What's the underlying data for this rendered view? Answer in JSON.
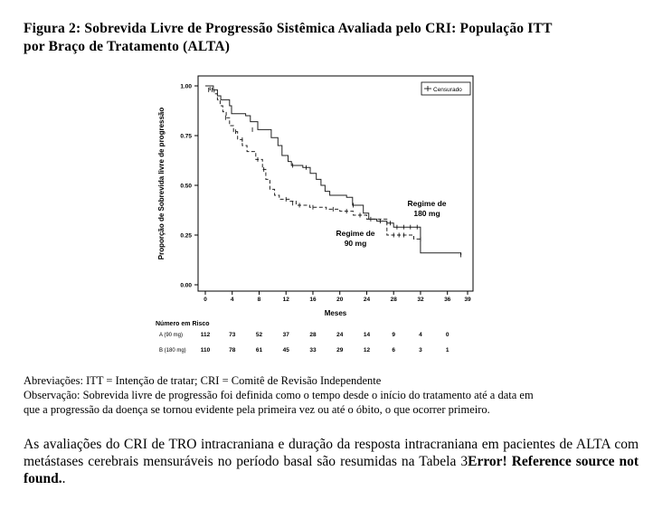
{
  "caption": {
    "line1": "Figura 2: Sobrevida Livre de Progressão Sistêmica Avaliada pelo CRI: População ITT",
    "line2": "por Braço de Tratamento (ALTA)"
  },
  "chart_data": {
    "type": "line",
    "chart_kind": "kaplan-meier",
    "ylabel": "Proporção de Sobrevida livre de progressão",
    "xlabel": "Meses",
    "xlim": [
      0,
      39
    ],
    "ylim": [
      0,
      1
    ],
    "x_ticks": [
      0,
      4,
      8,
      12,
      16,
      20,
      24,
      28,
      32,
      36,
      39
    ],
    "y_ticks": [
      "0.00",
      "0.25",
      "0.50",
      "0.75",
      "1.00"
    ],
    "legend": {
      "label": "Censurado",
      "position": "top-right"
    },
    "series": [
      {
        "label": "Regime de 90 mg",
        "label_lines": [
          "Regime de",
          "90 mg"
        ],
        "style": "dashed",
        "steps": [
          [
            0,
            1.0
          ],
          [
            0.7,
            0.98
          ],
          [
            1.3,
            0.96
          ],
          [
            1.8,
            0.93
          ],
          [
            2.2,
            0.9
          ],
          [
            2.6,
            0.87
          ],
          [
            3.1,
            0.84
          ],
          [
            3.6,
            0.8
          ],
          [
            4.2,
            0.77
          ],
          [
            4.8,
            0.73
          ],
          [
            5.5,
            0.7
          ],
          [
            6.2,
            0.67
          ],
          [
            7.5,
            0.63
          ],
          [
            8.5,
            0.58
          ],
          [
            9.0,
            0.53
          ],
          [
            9.6,
            0.48
          ],
          [
            10.3,
            0.45
          ],
          [
            11.0,
            0.43
          ],
          [
            12.5,
            0.42
          ],
          [
            13.5,
            0.4
          ],
          [
            15.5,
            0.39
          ],
          [
            18.0,
            0.38
          ],
          [
            20.0,
            0.37
          ],
          [
            22.0,
            0.35
          ],
          [
            24.0,
            0.33
          ],
          [
            27.0,
            0.25
          ],
          [
            31.0,
            0.23
          ],
          [
            32.0,
            0.23
          ]
        ],
        "censored": [
          [
            1.0,
            0.98
          ],
          [
            3.0,
            0.84
          ],
          [
            4.5,
            0.77
          ],
          [
            5.5,
            0.73
          ],
          [
            7.8,
            0.63
          ],
          [
            8.7,
            0.58
          ],
          [
            12.0,
            0.43
          ],
          [
            13.0,
            0.41
          ],
          [
            14.0,
            0.4
          ],
          [
            16.0,
            0.39
          ],
          [
            19.0,
            0.38
          ],
          [
            21.0,
            0.37
          ],
          [
            23.0,
            0.35
          ],
          [
            28.0,
            0.25
          ],
          [
            28.8,
            0.25
          ],
          [
            29.5,
            0.25
          ],
          [
            32.0,
            0.23
          ]
        ]
      },
      {
        "label": "Regime de 180 mg",
        "label_lines": [
          "Regime de",
          "180 mg"
        ],
        "style": "solid",
        "steps": [
          [
            0,
            1.0
          ],
          [
            1.2,
            0.98
          ],
          [
            1.8,
            0.95
          ],
          [
            2.3,
            0.93
          ],
          [
            3.6,
            0.9
          ],
          [
            3.9,
            0.86
          ],
          [
            6.0,
            0.85
          ],
          [
            6.7,
            0.82
          ],
          [
            7.8,
            0.78
          ],
          [
            9.8,
            0.74
          ],
          [
            10.8,
            0.7
          ],
          [
            11.4,
            0.65
          ],
          [
            12.3,
            0.62
          ],
          [
            12.8,
            0.6
          ],
          [
            14.5,
            0.59
          ],
          [
            15.6,
            0.56
          ],
          [
            16.5,
            0.53
          ],
          [
            17.2,
            0.5
          ],
          [
            17.8,
            0.47
          ],
          [
            18.5,
            0.45
          ],
          [
            21.0,
            0.44
          ],
          [
            21.9,
            0.4
          ],
          [
            23.5,
            0.36
          ],
          [
            24.3,
            0.33
          ],
          [
            25.5,
            0.32
          ],
          [
            27.0,
            0.31
          ],
          [
            28.0,
            0.29
          ],
          [
            32.0,
            0.16
          ],
          [
            38.0,
            0.15
          ]
        ],
        "censored": [
          [
            0.5,
            0.98
          ],
          [
            7.0,
            0.78
          ],
          [
            13.0,
            0.6
          ],
          [
            15.0,
            0.59
          ],
          [
            22.0,
            0.4
          ],
          [
            24.6,
            0.33
          ],
          [
            26.0,
            0.32
          ],
          [
            27.5,
            0.31
          ],
          [
            28.5,
            0.29
          ],
          [
            29.5,
            0.29
          ],
          [
            30.5,
            0.29
          ],
          [
            31.5,
            0.29
          ],
          [
            38.0,
            0.15
          ]
        ]
      }
    ],
    "risk_table": {
      "title": "Número em Risco",
      "times": [
        0,
        4,
        8,
        12,
        16,
        20,
        24,
        28,
        32,
        36
      ],
      "rows": [
        {
          "label": "A (90 mg)",
          "values": [
            "112",
            "73",
            "52",
            "37",
            "28",
            "24",
            "14",
            "9",
            "4",
            "0"
          ]
        },
        {
          "label": "B (180 mg)",
          "values": [
            "110",
            "78",
            "61",
            "45",
            "33",
            "29",
            "12",
            "6",
            "3",
            "1"
          ]
        }
      ]
    }
  },
  "notes": {
    "line1": "Abreviações: ITT = Intenção de tratar; CRI = Comitê de Revisão Independente",
    "line2": "Observação: Sobrevida livre de progressão foi definida como o tempo desde o início do tratamento até a data em",
    "line3": "que a progressão da doença se tornou evidente pela primeira vez ou até o óbito, o que ocorrer primeiro."
  },
  "body": {
    "text": "As avaliações do CRI de TRO intracraniana e duração da resposta intracraniana em pacientes de ALTA com metástases cerebrais mensuráveis no período basal são resumidas na Tabela 3",
    "error": "Error! Reference source not found.",
    "end": "."
  }
}
